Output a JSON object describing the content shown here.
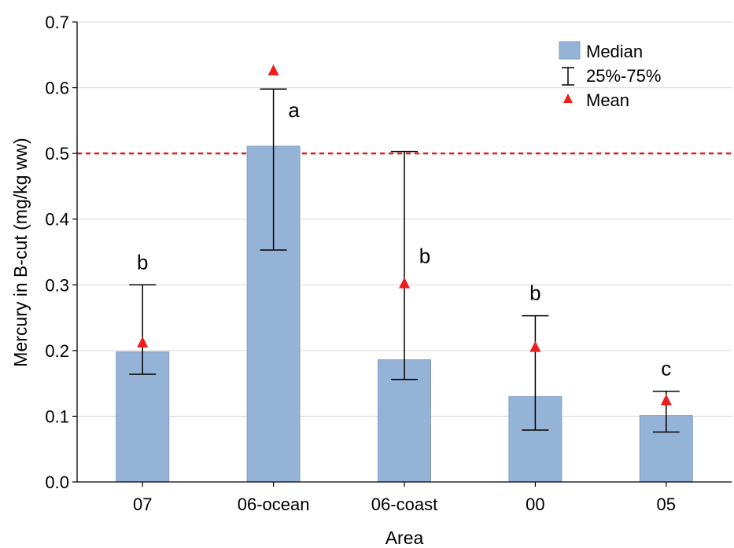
{
  "chart_data": {
    "type": "bar",
    "title": "",
    "xlabel": "Area",
    "ylabel": "Mercury in B-cut (mg/kg ww)",
    "categories": [
      "07",
      "06-ocean",
      "06-coast",
      "00",
      "05"
    ],
    "median": [
      0.198,
      0.511,
      0.186,
      0.13,
      0.101
    ],
    "q25": [
      0.164,
      0.353,
      0.156,
      0.079,
      0.076
    ],
    "q75": [
      0.3,
      0.598,
      0.503,
      0.253,
      0.138
    ],
    "mean": [
      0.212,
      0.626,
      0.302,
      0.205,
      0.124
    ],
    "group_letters": [
      "b",
      "a",
      "b",
      "b",
      "c"
    ],
    "reference_line": {
      "value": 0.5,
      "style": "dashed",
      "color": "#d62728"
    },
    "ylim": [
      0.0,
      0.7
    ],
    "yticks": [
      "0.0",
      "0.1",
      "0.2",
      "0.3",
      "0.4",
      "0.5",
      "0.6",
      "0.7"
    ],
    "grid": true,
    "legend": {
      "position": "top-right",
      "entries": [
        {
          "label": "Median",
          "symbol": "bar"
        },
        {
          "label": "25%-75%",
          "symbol": "whisker"
        },
        {
          "label": "Mean",
          "symbol": "triangle"
        }
      ]
    },
    "colors": {
      "bar": "#95b3d7",
      "bar_edge": "#7f9fc6",
      "mean": "#ee1c1c",
      "whisker": "#000000",
      "grid": "#d9d9d9"
    }
  }
}
